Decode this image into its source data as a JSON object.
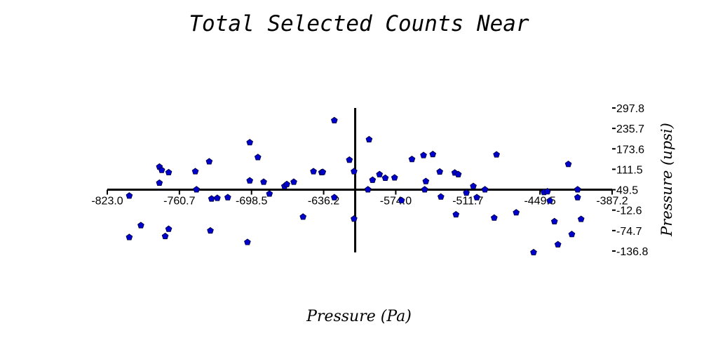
{
  "chart_data": {
    "type": "scatter",
    "title": "Total Selected Counts Near",
    "xlabel": "Pressure (Pa)",
    "ylabel": "Pressure (upsi)",
    "xlim": [
      -823.0,
      -387.2
    ],
    "ylim": [
      -136.8,
      297.8
    ],
    "xticks": [
      "-823.0",
      "-760.7",
      "-698.5",
      "-636.2",
      "-574.0",
      "-511.7",
      "-449.5",
      "-387.2"
    ],
    "yticks": [
      "297.8",
      "235.7",
      "173.6",
      "111.5",
      "49.5",
      "-12.6",
      "-74.7",
      "-136.8"
    ],
    "axes_cross": {
      "x": -609.0,
      "y": 49.5
    },
    "grid": false,
    "legend": "none",
    "marker_color": "#0000cc",
    "marker_edge": "#000033",
    "series": [
      {
        "points": [
          [
            -804,
            31
          ],
          [
            -794,
            -59
          ],
          [
            -804,
            -95
          ],
          [
            -778,
            119
          ],
          [
            -776,
            109
          ],
          [
            -778,
            70
          ],
          [
            -770,
            102
          ],
          [
            -773,
            -92
          ],
          [
            -770,
            -70
          ],
          [
            -747,
            105
          ],
          [
            -746,
            50
          ],
          [
            -735,
            135
          ],
          [
            -733,
            22
          ],
          [
            -728,
            24
          ],
          [
            -734,
            -75
          ],
          [
            -719,
            26
          ],
          [
            -700,
            193
          ],
          [
            -693,
            148
          ],
          [
            -688,
            73
          ],
          [
            -700,
            77
          ],
          [
            -702,
            -110
          ],
          [
            -683,
            37
          ],
          [
            -670,
            60
          ],
          [
            -668,
            66
          ],
          [
            -662,
            73
          ],
          [
            -654,
            -33
          ],
          [
            -645,
            105
          ],
          [
            -638,
            102
          ],
          [
            -637,
            103
          ],
          [
            -627,
            260
          ],
          [
            -627,
            26
          ],
          [
            -614,
            140
          ],
          [
            -610,
            105
          ],
          [
            -610,
            -39
          ],
          [
            -597,
            202
          ],
          [
            -594,
            79
          ],
          [
            -598,
            50
          ],
          [
            -588,
            96
          ],
          [
            -583,
            85
          ],
          [
            -575,
            86
          ],
          [
            -569,
            17
          ],
          [
            -560,
            142
          ],
          [
            -550,
            154
          ],
          [
            -548,
            75
          ],
          [
            -549,
            50
          ],
          [
            -542,
            157
          ],
          [
            -536,
            104
          ],
          [
            -535,
            28
          ],
          [
            -523,
            101
          ],
          [
            -520,
            96
          ],
          [
            -522,
            -26
          ],
          [
            -513,
            40
          ],
          [
            -507,
            60
          ],
          [
            -504,
            26
          ],
          [
            -497,
            50
          ],
          [
            -487,
            156
          ],
          [
            -489,
            -36
          ],
          [
            -470,
            -20
          ],
          [
            -455,
            -141
          ],
          [
            -446,
            42
          ],
          [
            -443,
            44
          ],
          [
            -441,
            16
          ],
          [
            -437,
            -47
          ],
          [
            -434,
            -117
          ],
          [
            -425,
            127
          ],
          [
            -422,
            -86
          ],
          [
            -417,
            50
          ],
          [
            -417,
            26
          ],
          [
            -414,
            -40
          ]
        ]
      }
    ]
  }
}
